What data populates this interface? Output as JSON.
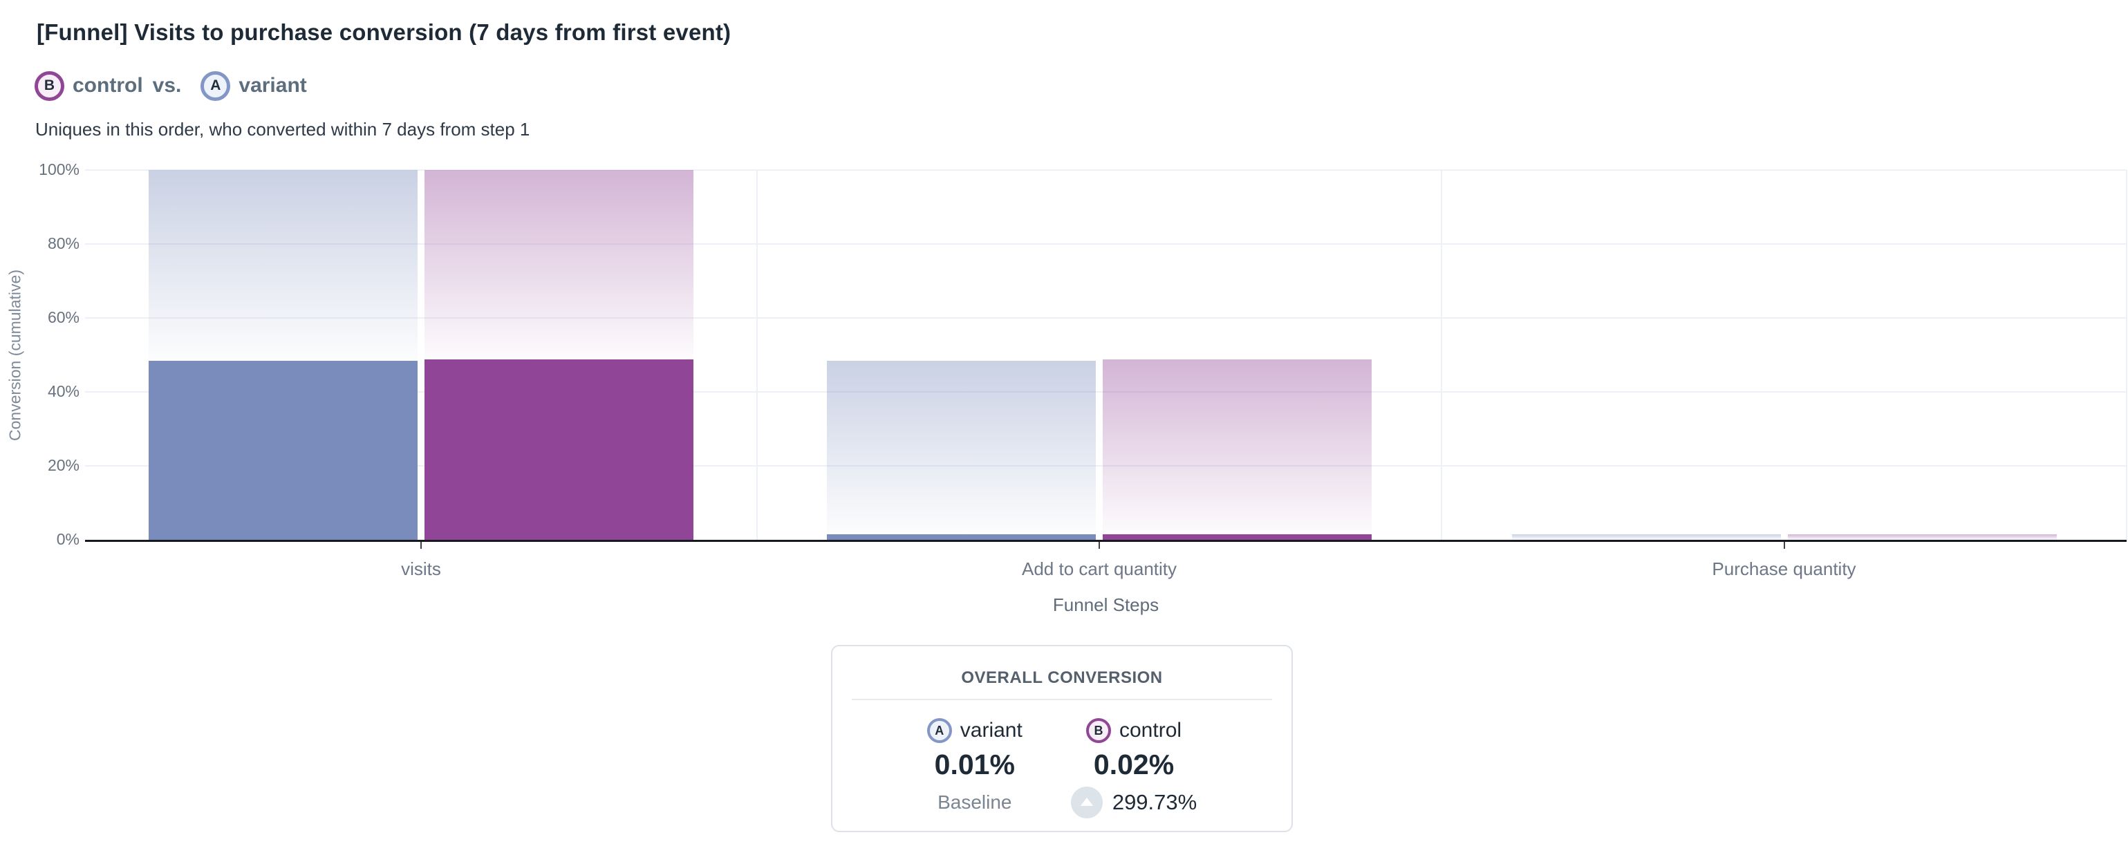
{
  "header": {
    "title": "[Funnel] Visits to purchase conversion (7 days from first event)",
    "comparison": {
      "left": {
        "letter": "B",
        "label": "control"
      },
      "vs": "vs.",
      "right": {
        "letter": "A",
        "label": "variant"
      }
    },
    "subtitle": "Uniques in this order, who converted within 7 days from step 1"
  },
  "chart_data": {
    "type": "bar",
    "subtype": "funnel-cumulative-conversion",
    "title": "[Funnel] Visits to purchase conversion (7 days from first event)",
    "xlabel": "Funnel Steps",
    "ylabel": "Conversion (cumulative)",
    "ylim": [
      0,
      100
    ],
    "grid": true,
    "y_ticks": [
      "0%",
      "20%",
      "40%",
      "60%",
      "80%",
      "100%"
    ],
    "y_ticks_pct": [
      0,
      20,
      40,
      60,
      80,
      100
    ],
    "categories": [
      "visits",
      "Add to cart quantity",
      "Purchase quantity"
    ],
    "series": [
      {
        "name": "variant",
        "letter": "A",
        "color": "#7a8cbb",
        "start_pct": [
          100,
          48.5,
          1.45
        ],
        "cumulative_pct": [
          48.5,
          1.45,
          0.01
        ]
      },
      {
        "name": "control",
        "letter": "B",
        "color": "#914596",
        "start_pct": [
          100,
          48.7,
          1.5
        ],
        "cumulative_pct": [
          48.7,
          1.5,
          0.02
        ]
      }
    ]
  },
  "overall_card": {
    "heading": "OVERALL CONVERSION",
    "columns": [
      {
        "letter": "A",
        "name": "variant",
        "value": "0.01%",
        "footnote": "Baseline"
      },
      {
        "letter": "B",
        "name": "control",
        "value": "0.02%",
        "delta": "299.73%",
        "delta_direction": "up"
      }
    ]
  },
  "colors": {
    "variant_solid": "#7a8cbb",
    "control_solid": "#914596",
    "variant_badge_border": "#8397c7",
    "variant_badge_bg": "#eef2fb",
    "control_badge_border": "#8f4694",
    "control_badge_bg": "#f7eef8",
    "gridline": "#edf1f7",
    "axis": "#16191d",
    "delta_pill": "#dce3e9"
  }
}
